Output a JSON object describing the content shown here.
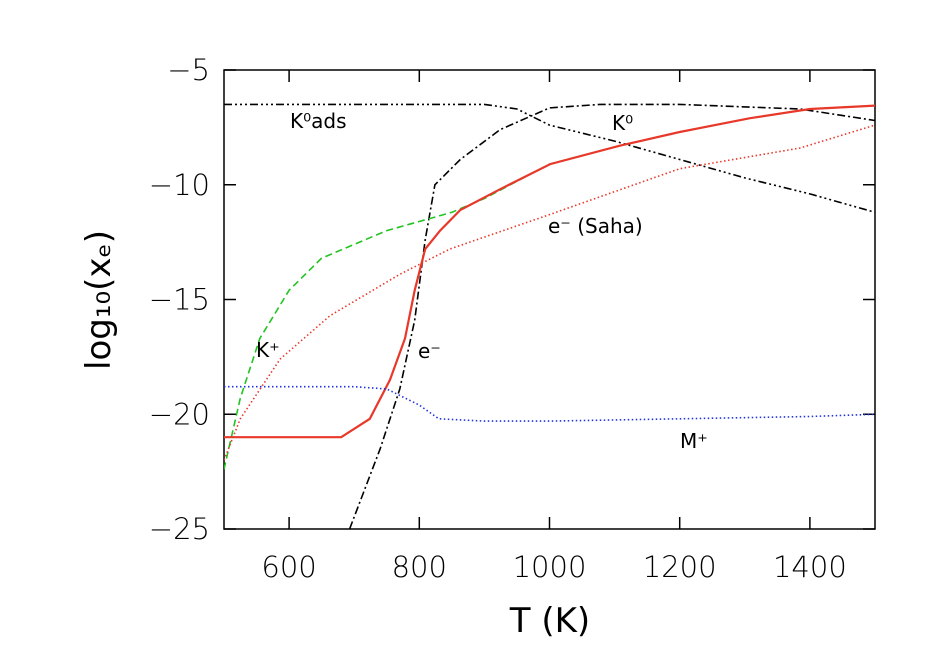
{
  "chart_data": {
    "type": "line",
    "xlabel": "T (K)",
    "ylabel": "log₁₀(xₑ)",
    "xlim": [
      500,
      1500
    ],
    "ylim": [
      -25,
      -5
    ],
    "xticks": [
      600,
      800,
      1000,
      1200,
      1400
    ],
    "yticks": [
      {
        "value": -25,
        "label": "−25"
      },
      {
        "value": -20,
        "label": "−20"
      },
      {
        "value": -15,
        "label": "−15"
      },
      {
        "value": -10,
        "label": "−10"
      },
      {
        "value": -5,
        "label": "−5"
      }
    ],
    "series": [
      {
        "name": "K⁰ads",
        "color": "#000000",
        "style": "dashdotdotdot",
        "x": [
          500,
          600,
          700,
          800,
          900,
          950,
          1000,
          1100,
          1200,
          1300,
          1400,
          1500
        ],
        "values": [
          -6.5,
          -6.5,
          -6.5,
          -6.5,
          -6.5,
          -6.7,
          -7.4,
          -8.1,
          -8.9,
          -9.7,
          -10.4,
          -11.2
        ]
      },
      {
        "name": "K⁰",
        "color": "#000000",
        "style": "dashdot",
        "x": [
          693,
          740,
          770,
          793,
          809,
          824,
          863,
          924,
          1000,
          1078,
          1200,
          1385,
          1500
        ],
        "values": [
          -25,
          -21.5,
          -18.9,
          -15.9,
          -12.4,
          -10,
          -8.9,
          -7.6,
          -6.65,
          -6.5,
          -6.5,
          -6.7,
          -7.2
        ]
      },
      {
        "name": "K⁺",
        "color": "#22c322",
        "style": "dashed",
        "x": [
          500,
          525,
          555,
          600,
          650,
          750,
          850,
          900,
          1000,
          1108,
          1200,
          1308,
          1400,
          1500
        ],
        "values": [
          -22.4,
          -19.3,
          -16.7,
          -14.6,
          -13.2,
          -12.0,
          -11.2,
          -10.6,
          -9.1,
          -8.3,
          -7.7,
          -7.1,
          -6.7,
          -6.55
        ]
      },
      {
        "name": "e⁻",
        "color": "#e8382a",
        "style": "solid",
        "x": [
          500,
          600,
          680,
          724,
          755,
          778,
          793,
          809,
          832,
          863,
          924,
          1001,
          1108,
          1200,
          1308,
          1400,
          1500
        ],
        "values": [
          -21,
          -21,
          -21,
          -20.2,
          -18.5,
          -16.7,
          -14.6,
          -12.8,
          -12.0,
          -11.1,
          -10.2,
          -9.1,
          -8.3,
          -7.7,
          -7.1,
          -6.7,
          -6.55
        ]
      },
      {
        "name": "e⁻ (Saha)",
        "color": "#e8382a",
        "style": "dotted",
        "x": [
          500,
          525,
          586,
          663,
          770,
          847,
          1000,
          1200,
          1385,
          1500
        ],
        "values": [
          -22.0,
          -20.2,
          -17.6,
          -15.7,
          -13.9,
          -12.8,
          -11.3,
          -9.3,
          -8.4,
          -7.4
        ]
      },
      {
        "name": "M⁺",
        "color": "#2233dd",
        "style": "dotted",
        "x": [
          500,
          600,
          700,
          750,
          800,
          830,
          900,
          1000,
          1200,
          1400,
          1500
        ],
        "values": [
          -18.8,
          -18.8,
          -18.8,
          -18.9,
          -19.6,
          -20.2,
          -20.3,
          -20.3,
          -20.2,
          -20.1,
          -20.0
        ]
      }
    ]
  }
}
